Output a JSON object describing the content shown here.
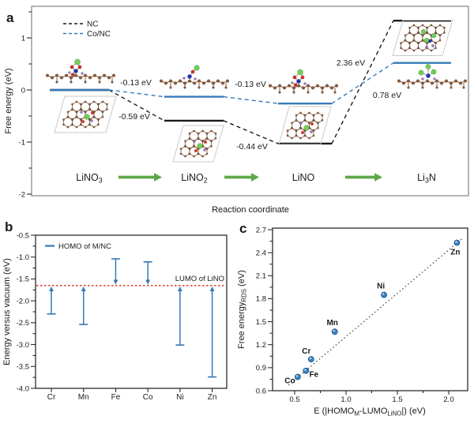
{
  "panels": {
    "a": "a",
    "b": "b",
    "c": "c"
  },
  "colors": {
    "nc_black": "#1a1a1a",
    "conc_blue": "#3579b8",
    "reference_red": "#e23b2e",
    "reaction_arrow_green": "#5fa848",
    "point_fill": "#3f86c7",
    "point_edge": "#17558f",
    "trendline_gray": "#555555",
    "atom_carbon_brown": "#8a5a3a",
    "atom_li_green": "#72cf5a",
    "atom_o_red": "#d92b1f",
    "atom_n_blue": "#2036b4",
    "atom_ndope_purple": "#9a7cc9",
    "cell_outline_gray": "#c9c9c9",
    "frame_gray": "#8c8c8c"
  },
  "chart_data": [
    {
      "panel": "a",
      "type": "line",
      "subtype": "free-energy-step-diagram",
      "xlabel": "Reaction coordinate",
      "ylabel": "Free energy (eV)",
      "ylim": [
        -2,
        1.6
      ],
      "yticks": [
        1,
        0,
        -1,
        -2
      ],
      "yticks_minor": [
        1.5,
        0.5,
        -0.5,
        -1.5
      ],
      "categories": [
        "LiNO~3~",
        "LiNO~2~",
        "LiNO",
        "Li~3~N"
      ],
      "series": [
        {
          "name": "NC",
          "color": "#1a1a1a",
          "values": [
            0,
            -0.59,
            -1.03,
            1.33
          ]
        },
        {
          "name": "Co/NC",
          "color": "#3579b8",
          "values": [
            0,
            -0.13,
            -0.26,
            0.52
          ]
        }
      ],
      "step_annotations": [
        {
          "text": "-0.13 eV",
          "series": "Co/NC",
          "between": [
            "LiNO3",
            "LiNO2"
          ]
        },
        {
          "text": "-0.59 eV",
          "series": "NC",
          "between": [
            "LiNO3",
            "LiNO2"
          ]
        },
        {
          "text": "-0.13 eV",
          "series": "Co/NC",
          "between": [
            "LiNO2",
            "LiNO"
          ]
        },
        {
          "text": "-0.44 eV",
          "series": "NC",
          "between": [
            "LiNO2",
            "LiNO"
          ]
        },
        {
          "text": "2.36 eV",
          "series": "NC",
          "between": [
            "LiNO",
            "Li3N"
          ]
        },
        {
          "text": "0.78 eV",
          "series": "Co/NC",
          "between": [
            "LiNO",
            "Li3N"
          ]
        }
      ],
      "molecule_insets": [
        "LiNO3-adsorbed-side-view",
        "Li-on-NC-cell-top-view",
        "LiNO2-adsorbed-side-view",
        "Li-on-NC-cell-top-view",
        "LiNO-adsorbed-side-view",
        "Li-on-NC-cell-top-view",
        "Li3N-on-NC-cell-top-view",
        "Li3N-adsorbed-side-view"
      ],
      "legend_position": "top-left",
      "grid": false
    },
    {
      "panel": "b",
      "type": "bar",
      "subtype": "level-arrow-chart",
      "categories": [
        "Cr",
        "Mn",
        "Fe",
        "Co",
        "Ni",
        "Zn"
      ],
      "series": [
        {
          "name": "HOMO of M/NC",
          "color": "#3579b8",
          "values": [
            -2.3,
            -2.54,
            -1.04,
            -1.11,
            -3.01,
            -3.74
          ]
        }
      ],
      "reference_line": {
        "label": "LUMO of LiNO",
        "value": -1.65,
        "color": "#e23b2e",
        "style": "dotted"
      },
      "ylabel": "Energy versus vacuum (eV)",
      "ylim": [
        -4.0,
        -0.5
      ],
      "yticks": [
        -0.5,
        -1.0,
        -1.5,
        -2.0,
        -2.5,
        -3.0,
        -3.5,
        -4.0
      ],
      "legend_position": "top-left",
      "grid": false
    },
    {
      "panel": "c",
      "type": "scatter",
      "xlabel": "E (|HOMO~M~-LUMO~LiNO~|) (eV)",
      "ylabel": "Free energy~RDS~ (eV)",
      "xlim": [
        0.25,
        2.19
      ],
      "ylim": [
        0.6,
        2.7
      ],
      "xticks": [
        0.5,
        1.0,
        1.5,
        2.0
      ],
      "yticks": [
        0.6,
        0.9,
        1.2,
        1.5,
        1.8,
        2.1,
        2.4,
        2.7
      ],
      "points": [
        {
          "label": "Co",
          "x": 0.53,
          "y": 0.78
        },
        {
          "label": "Fe",
          "x": 0.61,
          "y": 0.86
        },
        {
          "label": "Cr",
          "x": 0.66,
          "y": 1.01
        },
        {
          "label": "Mn",
          "x": 0.89,
          "y": 1.37
        },
        {
          "label": "Ni",
          "x": 1.37,
          "y": 1.85
        },
        {
          "label": "Zn",
          "x": 2.08,
          "y": 2.53
        }
      ],
      "trendline": {
        "style": "dotted",
        "slope": 1.13,
        "intercept": 0.175,
        "x_range": [
          0.44,
          2.14
        ]
      },
      "grid": false
    }
  ]
}
